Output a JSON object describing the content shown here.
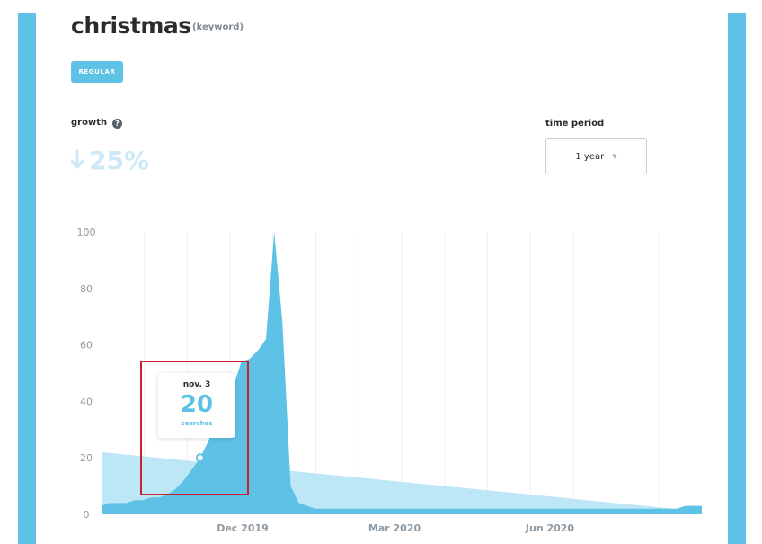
{
  "keyword": {
    "title": "christmas",
    "type_label": "(keyword)"
  },
  "regular_label": "REGULAR",
  "growth": {
    "label": "growth",
    "help_icon": "?",
    "value": "25%",
    "direction": "down",
    "arrow_icon": "arrow-down-icon"
  },
  "time_period": {
    "label": "time period",
    "selected": "1 year",
    "caret": "▼"
  },
  "tooltip": {
    "date": "nov. 3",
    "value": "20",
    "unit": "searches"
  },
  "colors": {
    "accent": "#5ec2e6",
    "growth_text": "#cde9f6",
    "projection_fill": "#bde6f6",
    "highlight": "#c8222c",
    "gridline": "#eef0f2",
    "axis_text": "#8f9aa3"
  },
  "chart_data": {
    "type": "area",
    "ylim": [
      0,
      100
    ],
    "y_ticks": [
      0,
      20,
      40,
      60,
      80,
      100
    ],
    "x_tick_labels": [
      "Dec 2019",
      "Mar 2020",
      "Jun 2020"
    ],
    "grid": "vertical",
    "series": [
      {
        "values": [
          3,
          4,
          4,
          4,
          5,
          5,
          6,
          6,
          7,
          9,
          12,
          16,
          20,
          26,
          33,
          38,
          45,
          54,
          55,
          58,
          62,
          100,
          68,
          10,
          4,
          3,
          2,
          2,
          2,
          2,
          2,
          2,
          2,
          2,
          2,
          2,
          2,
          2,
          2,
          2,
          2,
          2,
          2,
          2,
          2,
          2,
          2,
          2,
          2,
          2,
          2,
          2,
          2,
          2,
          2,
          2,
          2,
          2,
          2,
          2,
          2,
          2,
          2,
          2,
          2,
          2,
          2,
          2,
          2,
          2,
          2,
          3,
          3,
          3
        ]
      }
    ],
    "trend": {
      "start": 22,
      "end": 1
    },
    "highlight_index": 12
  }
}
